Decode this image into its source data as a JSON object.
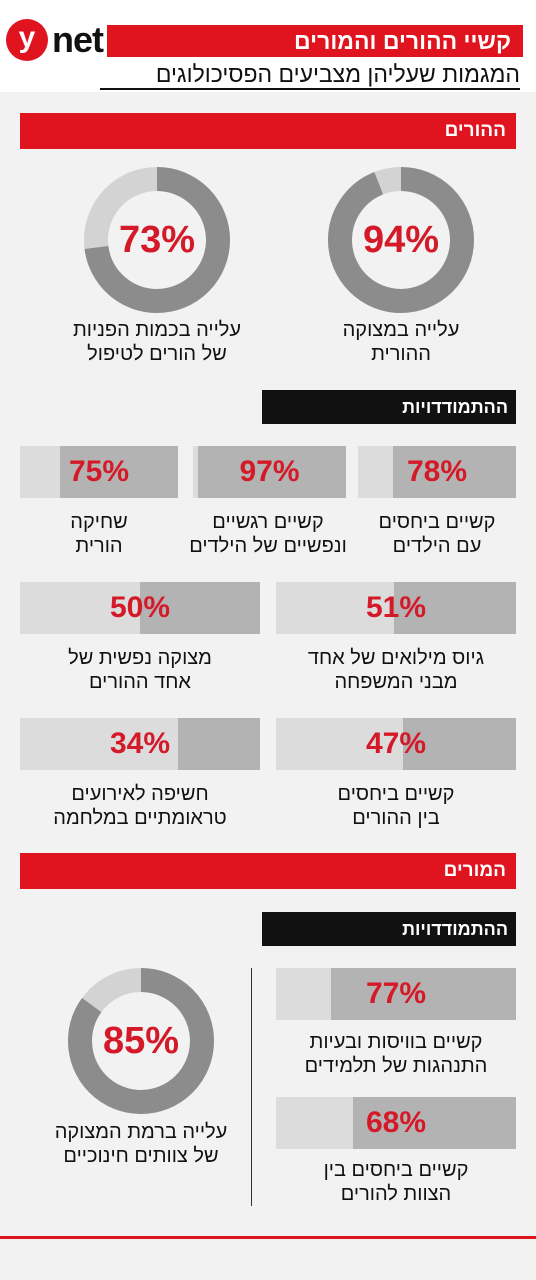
{
  "header": {
    "logo_y": "y",
    "logo_text": "net",
    "title": "קשיי ההורים והמורים",
    "subtitle": "המגמות שעליהן מצביעים הפסיכולוגים"
  },
  "parents": {
    "section_label": "ההורים",
    "donuts": [
      {
        "value": "94%",
        "fraction": 0.94,
        "line1": "עלייה במצוקה",
        "line2": "ההורית"
      },
      {
        "value": "73%",
        "fraction": 0.73,
        "line1": "עלייה בכמות הפניות",
        "line2": "של הורים לטיפול"
      }
    ],
    "coping_label": "ההתמודדויות",
    "bars": [
      {
        "value": "78%",
        "fraction": 0.78,
        "line1": "קשיים ביחסים",
        "line2": "עם הילדים"
      },
      {
        "value": "97%",
        "fraction": 0.97,
        "line1": "קשיים רגשיים",
        "line2": "ונפשיים של הילדים"
      },
      {
        "value": "75%",
        "fraction": 0.75,
        "line1": "שחיקה",
        "line2": "הורית"
      },
      {
        "value": "51%",
        "fraction": 0.51,
        "line1": "גיוס מילואים של אחד",
        "line2": "מבני המשפחה"
      },
      {
        "value": "50%",
        "fraction": 0.5,
        "line1": "מצוקה נפשית של",
        "line2": "אחד ההורים"
      },
      {
        "value": "47%",
        "fraction": 0.47,
        "line1": "קשיים ביחסים",
        "line2": "בין ההורים"
      },
      {
        "value": "34%",
        "fraction": 0.34,
        "line1": "חשיפה לאירועים",
        "line2": "טראומתיים במלחמה"
      }
    ]
  },
  "teachers": {
    "section_label": "המורים",
    "coping_label": "ההתמודדויות",
    "bars": [
      {
        "value": "77%",
        "fraction": 0.77,
        "line1": "קשיים בוויסות ובעיות",
        "line2": "התנהגות של תלמידים"
      },
      {
        "value": "68%",
        "fraction": 0.68,
        "line1": "קשיים ביחסים בין",
        "line2": "הצוות להורים"
      }
    ],
    "donut": {
      "value": "85%",
      "fraction": 0.85,
      "line1": "עלייה ברמת המצוקה",
      "line2": "של צוותים חינוכיים"
    }
  },
  "colors": {
    "red": "#e0141e",
    "value_red": "#d41a28",
    "black": "#111111",
    "dark_gray": "#8c8c8c",
    "light_gray": "#d3d3d3"
  }
}
